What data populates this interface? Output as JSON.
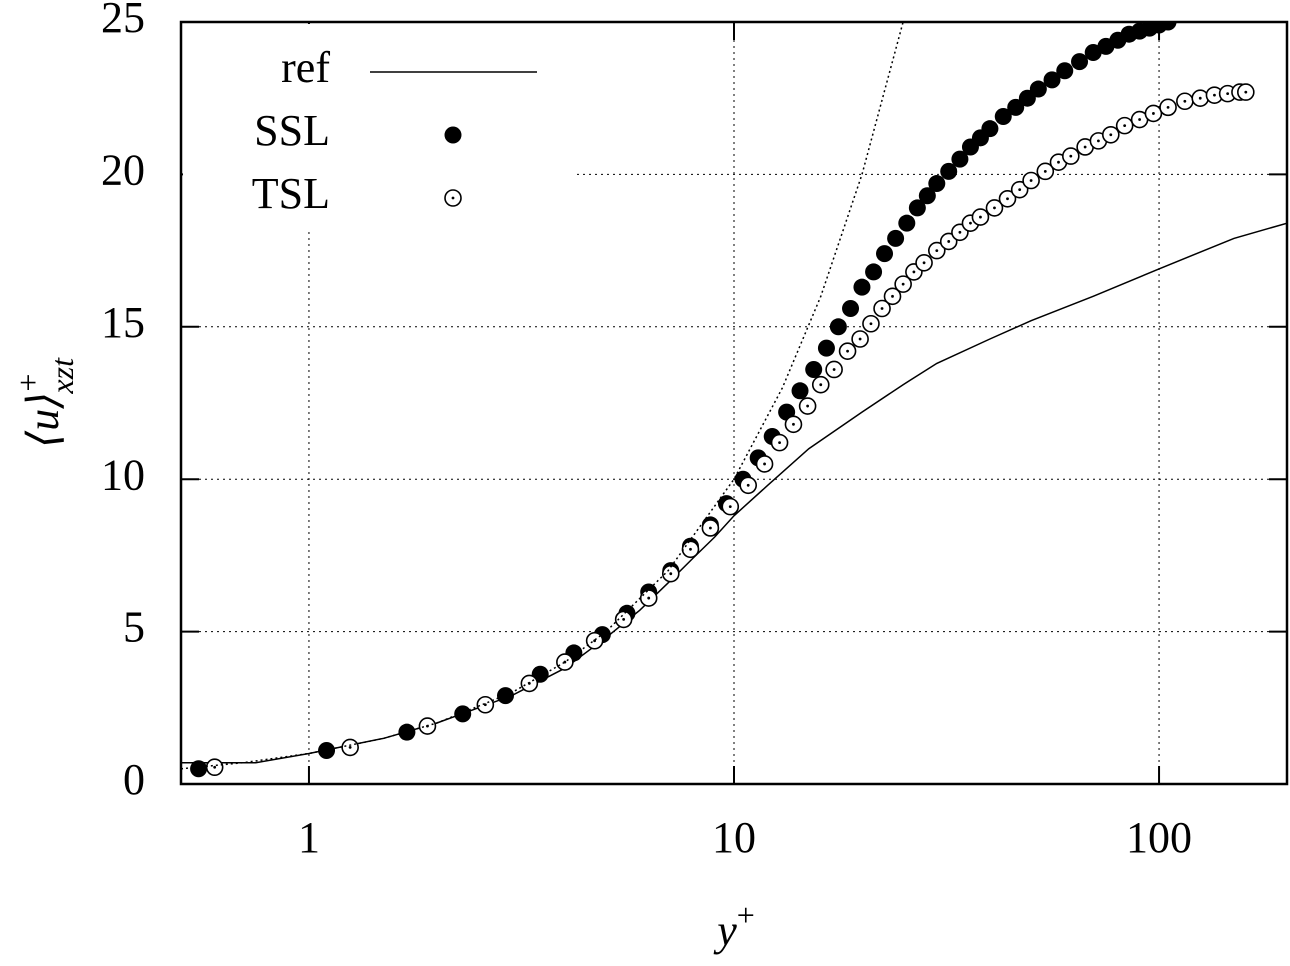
{
  "chart_data": {
    "type": "line",
    "xlabel": {
      "base": "y",
      "sup": "+"
    },
    "ylabel": {
      "base": "⟨u⟩",
      "sup": "+",
      "sub": "xzt"
    },
    "xscale": "log",
    "xlim": [
      0.5,
      200
    ],
    "xticks": [
      1,
      10,
      100
    ],
    "ylim": [
      0,
      25
    ],
    "yticks": [
      0,
      5,
      10,
      15,
      20,
      25
    ],
    "grid": true,
    "legend": "upper left",
    "series": [
      {
        "name": "ref",
        "color": "#000000",
        "style": "line",
        "x": [
          0.5,
          0.75,
          1,
          1.5,
          2,
          3,
          4,
          5,
          6,
          7,
          8,
          9,
          10,
          12,
          15,
          20,
          25,
          30,
          40,
          50,
          70,
          100,
          150,
          200
        ],
        "values": [
          0.7,
          0.7,
          1.0,
          1.5,
          2.0,
          2.9,
          3.8,
          4.8,
          5.7,
          6.6,
          7.4,
          8.1,
          8.8,
          9.8,
          11.0,
          12.2,
          13.1,
          13.8,
          14.6,
          15.2,
          16.0,
          16.9,
          17.9,
          18.4
        ]
      },
      {
        "name": "SSL",
        "color": "#000000",
        "style": "filled",
        "x": [
          0.55,
          1.1,
          1.7,
          2.3,
          2.9,
          3.5,
          4.2,
          4.9,
          5.6,
          6.3,
          7.1,
          7.9,
          8.8,
          9.6,
          10.5,
          11.4,
          12.3,
          13.3,
          14.3,
          15.4,
          16.5,
          17.6,
          18.8,
          20,
          21.3,
          22.6,
          24,
          25.5,
          27,
          28.5,
          30,
          32,
          34,
          36,
          38,
          40,
          43,
          46,
          49,
          52,
          56,
          60,
          65,
          70,
          75,
          80,
          85,
          90,
          95,
          100,
          105
        ],
        "values": [
          0.5,
          1.1,
          1.7,
          2.3,
          2.9,
          3.6,
          4.3,
          4.9,
          5.6,
          6.3,
          7.0,
          7.8,
          8.5,
          9.2,
          10.0,
          10.7,
          11.4,
          12.2,
          12.9,
          13.6,
          14.3,
          15.0,
          15.6,
          16.3,
          16.8,
          17.4,
          17.9,
          18.4,
          18.9,
          19.3,
          19.7,
          20.1,
          20.5,
          20.9,
          21.2,
          21.5,
          21.9,
          22.2,
          22.5,
          22.8,
          23.1,
          23.4,
          23.7,
          24.0,
          24.2,
          24.4,
          24.6,
          24.7,
          24.8,
          24.9,
          25.0
        ]
      },
      {
        "name": "TSL",
        "color": "#000000",
        "style": "open",
        "x": [
          0.6,
          1.25,
          1.9,
          2.6,
          3.3,
          4.0,
          4.7,
          5.5,
          6.3,
          7.1,
          7.9,
          8.8,
          9.8,
          10.8,
          11.8,
          12.8,
          13.8,
          14.9,
          16,
          17.2,
          18.5,
          19.8,
          21,
          22.3,
          23.6,
          25,
          26.5,
          28,
          30,
          32,
          34,
          36,
          38,
          41,
          44,
          47,
          50,
          54,
          58,
          62,
          67,
          72,
          77,
          83,
          90,
          97,
          105,
          115,
          125,
          135,
          145,
          155,
          160
        ],
        "values": [
          0.55,
          1.2,
          1.9,
          2.6,
          3.3,
          4.0,
          4.7,
          5.4,
          6.1,
          6.9,
          7.7,
          8.4,
          9.1,
          9.8,
          10.5,
          11.2,
          11.8,
          12.4,
          13.1,
          13.6,
          14.2,
          14.6,
          15.1,
          15.6,
          16.0,
          16.4,
          16.8,
          17.1,
          17.5,
          17.8,
          18.1,
          18.4,
          18.6,
          18.9,
          19.2,
          19.5,
          19.8,
          20.1,
          20.4,
          20.6,
          20.9,
          21.1,
          21.3,
          21.6,
          21.8,
          22.0,
          22.2,
          22.4,
          22.5,
          22.6,
          22.65,
          22.7,
          22.7
        ]
      },
      {
        "color": "#000000",
        "style": "dotted",
        "x": [
          0.5,
          0.7,
          1,
          1.5,
          2,
          3,
          4,
          5,
          7,
          10,
          13,
          16,
          20,
          25
        ],
        "values": [
          0.5,
          0.7,
          1,
          1.5,
          2,
          3,
          4,
          5,
          7,
          10,
          13,
          16,
          20,
          25
        ]
      }
    ]
  }
}
